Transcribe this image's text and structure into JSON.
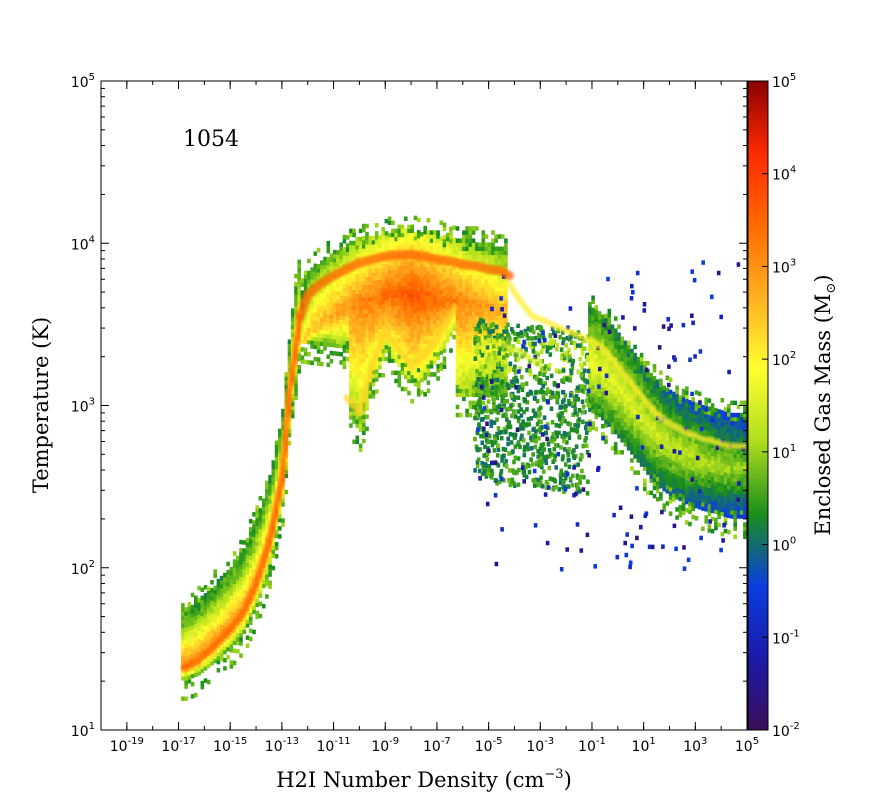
{
  "chart_data": {
    "type": "heatmap",
    "title": "",
    "annotation": "1054",
    "xlabel": "H2I Number Density (cm",
    "xlabel_unit_exp": "−3",
    "xlabel_close": ")",
    "ylabel": "Temperature (K)",
    "colorbar_label": "Enclosed Gas Mass (M",
    "colorbar_label_sub": "⊙",
    "colorbar_label_close": ")",
    "x_scale": "log",
    "y_scale": "log",
    "colorbar_scale": "log",
    "xlim": [
      1e-20,
      100000.0
    ],
    "ylim": [
      10,
      100000
    ],
    "clim": [
      0.01,
      100000
    ],
    "x_ticks": [
      {
        "base": "10",
        "exp": "-19"
      },
      {
        "base": "10",
        "exp": "-17"
      },
      {
        "base": "10",
        "exp": "-15"
      },
      {
        "base": "10",
        "exp": "-13"
      },
      {
        "base": "10",
        "exp": "-11"
      },
      {
        "base": "10",
        "exp": "-9"
      },
      {
        "base": "10",
        "exp": "-7"
      },
      {
        "base": "10",
        "exp": "-5"
      },
      {
        "base": "10",
        "exp": "-3"
      },
      {
        "base": "10",
        "exp": "-1"
      },
      {
        "base": "10",
        "exp": "1"
      },
      {
        "base": "10",
        "exp": "3"
      },
      {
        "base": "10",
        "exp": "5"
      }
    ],
    "y_ticks": [
      {
        "base": "10",
        "exp": "1"
      },
      {
        "base": "10",
        "exp": "2"
      },
      {
        "base": "10",
        "exp": "3"
      },
      {
        "base": "10",
        "exp": "4"
      },
      {
        "base": "10",
        "exp": "5"
      }
    ],
    "colorbar_ticks": [
      {
        "base": "10",
        "exp": "-2"
      },
      {
        "base": "10",
        "exp": "-1"
      },
      {
        "base": "10",
        "exp": "0"
      },
      {
        "base": "10",
        "exp": "1"
      },
      {
        "base": "10",
        "exp": "2"
      },
      {
        "base": "10",
        "exp": "3"
      },
      {
        "base": "10",
        "exp": "4"
      },
      {
        "base": "10",
        "exp": "5"
      }
    ],
    "colormap": [
      "#3b0f5a",
      "#1a1aa8",
      "#0a3ee0",
      "#1b8f1b",
      "#aede1c",
      "#ffff2e",
      "#ffb020",
      "#ff6a00",
      "#ff2a00",
      "#8a0000"
    ],
    "grid": false,
    "ridge_series": [
      {
        "x": [
          -16.8,
          -16.3,
          -15.6,
          -15.0,
          -14.5,
          -14.0,
          -13.5,
          -13.0,
          -12.7,
          -12.3
        ],
        "y": [
          1.38,
          1.42,
          1.52,
          1.62,
          1.72,
          1.9,
          2.15,
          2.55,
          3.1,
          3.55
        ]
      },
      {
        "x": [
          -12.3,
          -12.0,
          -11.5,
          -11.0,
          -10.5,
          -10.0,
          -9.5,
          -9.0,
          -8.5,
          -8.0,
          -7.5,
          -7.0,
          -6.5,
          -6.0,
          -5.5,
          -5.0,
          -4.5,
          -4.2
        ],
        "y": [
          3.55,
          3.68,
          3.75,
          3.8,
          3.84,
          3.88,
          3.9,
          3.92,
          3.93,
          3.93,
          3.92,
          3.9,
          3.89,
          3.87,
          3.86,
          3.84,
          3.83,
          3.8
        ]
      },
      {
        "x": [
          -10.5,
          -10.0,
          -9.5,
          -9.0,
          -8.5,
          -8.0,
          -7.5,
          -7.0,
          -6.5,
          -6.3
        ],
        "y": [
          3.05,
          2.95,
          3.25,
          3.45,
          3.35,
          3.25,
          3.3,
          3.4,
          3.55,
          3.6
        ]
      },
      {
        "x": [
          -4.2,
          -3.8,
          -3.3,
          -2.8,
          -2.3,
          -1.8,
          -1.3,
          -0.8,
          -0.3,
          0.2,
          0.7,
          1.2,
          1.7,
          2.2,
          2.7,
          3.2,
          3.7,
          4.3,
          4.9
        ],
        "y": [
          3.75,
          3.65,
          3.55,
          3.52,
          3.48,
          3.45,
          3.42,
          3.38,
          3.3,
          3.2,
          3.1,
          3.0,
          2.92,
          2.87,
          2.83,
          2.8,
          2.78,
          2.75,
          2.75
        ]
      },
      {
        "x": [
          -5.5,
          -5.0,
          -4.5,
          -4.0,
          -3.5,
          -3.0
        ],
        "y": [
          3.35,
          3.4,
          3.38,
          3.35,
          3.3,
          3.25
        ]
      }
    ]
  }
}
